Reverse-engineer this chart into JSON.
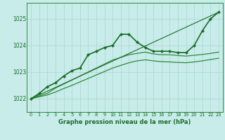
{
  "title": "Graphe pression niveau de la mer (hPa)",
  "background_color": "#c8ece9",
  "grid_color": "#b0d8d4",
  "xlim": [
    -0.5,
    23.5
  ],
  "ylim": [
    1021.5,
    1025.6
  ],
  "yticks": [
    1022,
    1023,
    1024,
    1025
  ],
  "xticks": [
    0,
    1,
    2,
    3,
    4,
    5,
    6,
    7,
    8,
    9,
    10,
    11,
    12,
    13,
    14,
    15,
    16,
    17,
    18,
    19,
    20,
    21,
    22,
    23
  ],
  "series": [
    {
      "x": [
        0,
        1,
        2,
        3,
        4,
        5,
        6,
        7,
        8,
        9,
        10,
        11,
        12,
        13,
        14,
        15,
        16,
        17,
        18,
        19,
        20,
        21,
        22,
        23
      ],
      "y": [
        1022.0,
        1022.2,
        1022.45,
        1022.6,
        1022.85,
        1023.05,
        1023.15,
        1023.65,
        1023.78,
        1023.92,
        1024.0,
        1024.42,
        1024.42,
        1024.12,
        1023.92,
        1023.78,
        1023.78,
        1023.78,
        1023.73,
        1023.73,
        1024.0,
        1024.55,
        1025.0,
        1025.25
      ],
      "color": "#1a6b2a",
      "linewidth": 1.2,
      "marker": "D",
      "markersize": 2.2
    },
    {
      "x": [
        0,
        1,
        2,
        3,
        4,
        5,
        6,
        7,
        8,
        9,
        10,
        11,
        12,
        13,
        14,
        15,
        16,
        17,
        18,
        19,
        20,
        21,
        22,
        23
      ],
      "y": [
        1022.0,
        1022.1,
        1022.2,
        1022.4,
        1022.55,
        1022.7,
        1022.85,
        1023.0,
        1023.15,
        1023.3,
        1023.45,
        1023.55,
        1023.65,
        1023.7,
        1023.75,
        1023.68,
        1023.65,
        1023.65,
        1023.62,
        1023.6,
        1023.63,
        1023.66,
        1023.7,
        1023.75
      ],
      "color": "#2d8a3e",
      "linewidth": 0.9,
      "marker": null,
      "markersize": 0
    },
    {
      "x": [
        0,
        1,
        2,
        3,
        4,
        5,
        6,
        7,
        8,
        9,
        10,
        11,
        12,
        13,
        14,
        15,
        16,
        17,
        18,
        19,
        20,
        21,
        22,
        23
      ],
      "y": [
        1022.0,
        1022.07,
        1022.14,
        1022.25,
        1022.38,
        1022.5,
        1022.63,
        1022.76,
        1022.89,
        1023.02,
        1023.15,
        1023.25,
        1023.35,
        1023.42,
        1023.46,
        1023.42,
        1023.39,
        1023.38,
        1023.36,
        1023.35,
        1023.38,
        1023.42,
        1023.47,
        1023.52
      ],
      "color": "#2d8a3e",
      "linewidth": 0.9,
      "marker": null,
      "markersize": 0
    },
    {
      "x": [
        0,
        23
      ],
      "y": [
        1022.0,
        1025.25
      ],
      "color": "#1a6b2a",
      "linewidth": 0.8,
      "marker": null,
      "markersize": 0
    }
  ]
}
